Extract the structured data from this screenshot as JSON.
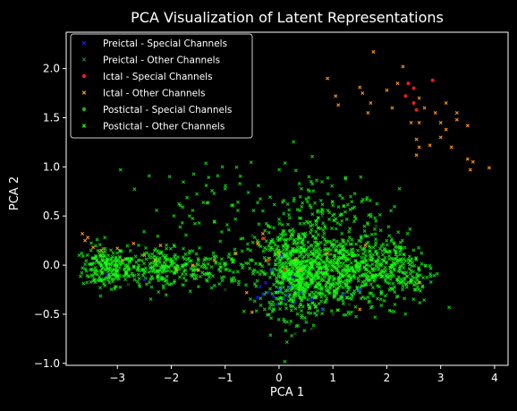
{
  "chart_data": {
    "type": "scatter",
    "title": "PCA Visualization of Latent Representations",
    "xlabel": "PCA 1",
    "ylabel": "PCA 2",
    "xlim": [
      -3.95,
      4.25
    ],
    "ylim": [
      -1.02,
      2.37
    ],
    "xticks": [
      -3,
      -2,
      -1,
      0,
      1,
      2,
      3,
      4
    ],
    "xtick_labels": [
      "−3",
      "−2",
      "−1",
      "0",
      "1",
      "2",
      "3",
      "4"
    ],
    "yticks": [
      -1.0,
      -0.5,
      0.0,
      0.5,
      1.0,
      1.5,
      2.0
    ],
    "ytick_labels": [
      "−1.0",
      "−0.5",
      "0.0",
      "0.5",
      "1.0",
      "1.5",
      "2.0"
    ],
    "grid": false,
    "legend_position": "top-left",
    "background": "#000000",
    "series": [
      {
        "name": "Preictal - Special Channels",
        "color": "#1a1aff",
        "marker": "x",
        "points": [
          [
            -0.3,
            -0.3
          ],
          [
            -0.2,
            -0.28
          ],
          [
            -0.1,
            -0.32
          ],
          [
            0.0,
            -0.25
          ],
          [
            0.1,
            -0.35
          ],
          [
            -0.4,
            -0.33
          ],
          [
            0.2,
            -0.22
          ],
          [
            0.3,
            -0.38
          ],
          [
            -0.15,
            -0.05
          ],
          [
            0.05,
            0.1
          ],
          [
            0.4,
            -0.28
          ],
          [
            -0.25,
            -0.18
          ],
          [
            0.15,
            -0.3
          ],
          [
            0.6,
            -0.35
          ],
          [
            -0.05,
            -0.4
          ],
          [
            1.2,
            -0.3
          ],
          [
            1.5,
            -0.25
          ],
          [
            -3.2,
            -0.1
          ],
          [
            -2.5,
            -0.15
          ],
          [
            0.8,
            -0.45
          ],
          [
            -0.35,
            -0.22
          ],
          [
            0.25,
            -0.12
          ]
        ]
      },
      {
        "name": "Preictal - Other Channels",
        "color": "#2a7a2a",
        "marker": "x",
        "points": [
          [
            -3.3,
            -0.05
          ],
          [
            -3.0,
            -0.15
          ],
          [
            -2.8,
            -0.2
          ],
          [
            -2.2,
            -0.1
          ],
          [
            -1.8,
            -0.2
          ],
          [
            -1.0,
            -0.25
          ],
          [
            0.2,
            -0.6
          ],
          [
            0.5,
            -0.55
          ],
          [
            1.0,
            -0.5
          ],
          [
            1.5,
            -0.45
          ],
          [
            2.0,
            -0.3
          ],
          [
            2.5,
            -0.2
          ],
          [
            0.3,
            -0.7
          ],
          [
            -0.2,
            -0.5
          ],
          [
            0.8,
            0.5
          ],
          [
            1.2,
            0.6
          ],
          [
            1.8,
            0.4
          ],
          [
            2.2,
            0.2
          ],
          [
            -0.5,
            0.3
          ],
          [
            0.6,
            -0.65
          ],
          [
            1.3,
            -0.4
          ],
          [
            -1.4,
            0.05
          ]
        ]
      },
      {
        "name": "Ictal - Special Channels",
        "color": "#ff1a1a",
        "marker": "o",
        "points": [
          [
            2.4,
            1.85
          ],
          [
            2.5,
            1.8
          ],
          [
            2.35,
            1.72
          ],
          [
            2.85,
            1.88
          ],
          [
            2.55,
            1.58
          ],
          [
            2.5,
            1.65
          ],
          [
            -0.3,
            0.27
          ],
          [
            -0.2,
            0.05
          ],
          [
            0.1,
            -0.05
          ]
        ]
      },
      {
        "name": "Ictal - Other Channels",
        "color": "#ff9a1a",
        "marker": "x",
        "points": [
          [
            1.75,
            2.17
          ],
          [
            2.3,
            2.02
          ],
          [
            2.0,
            1.78
          ],
          [
            0.9,
            1.9
          ],
          [
            1.05,
            1.72
          ],
          [
            1.1,
            1.63
          ],
          [
            1.5,
            1.81
          ],
          [
            1.55,
            1.75
          ],
          [
            1.7,
            1.65
          ],
          [
            2.1,
            1.6
          ],
          [
            2.2,
            1.85
          ],
          [
            2.45,
            1.45
          ],
          [
            2.6,
            1.45
          ],
          [
            2.6,
            1.7
          ],
          [
            2.7,
            1.6
          ],
          [
            2.9,
            1.55
          ],
          [
            3.0,
            1.45
          ],
          [
            3.1,
            1.65
          ],
          [
            3.3,
            1.48
          ],
          [
            3.5,
            1.42
          ],
          [
            2.55,
            1.28
          ],
          [
            2.6,
            1.2
          ],
          [
            2.8,
            1.22
          ],
          [
            3.0,
            1.3
          ],
          [
            3.2,
            1.2
          ],
          [
            3.1,
            1.38
          ],
          [
            3.5,
            1.08
          ],
          [
            3.55,
            0.97
          ],
          [
            3.6,
            1.05
          ],
          [
            3.9,
            0.99
          ],
          [
            2.55,
            1.12
          ],
          [
            1.65,
            1.55
          ],
          [
            3.3,
            1.55
          ],
          [
            -3.55,
            0.28
          ],
          [
            -3.6,
            0.25
          ],
          [
            -3.45,
            0.18
          ],
          [
            -3.3,
            0.15
          ],
          [
            -3.0,
            0.17
          ],
          [
            -2.7,
            0.22
          ],
          [
            -2.5,
            0.1
          ],
          [
            -2.3,
            0.05
          ],
          [
            -1.6,
            0.0
          ],
          [
            -1.2,
            0.05
          ],
          [
            -0.8,
            0.12
          ],
          [
            -0.4,
            0.22
          ],
          [
            0.0,
            0.12
          ],
          [
            0.4,
            -0.05
          ],
          [
            -1.9,
            -0.05
          ],
          [
            -2.2,
            0.2
          ],
          [
            -0.6,
            -0.28
          ],
          [
            -0.5,
            -0.48
          ],
          [
            1.5,
            -0.45
          ],
          [
            2.6,
            -0.18
          ],
          [
            0.3,
            0.05
          ],
          [
            -0.3,
            0.32
          ],
          [
            -1.5,
            -0.05
          ],
          [
            0.9,
            0.12
          ],
          [
            1.6,
            0.2
          ],
          [
            -2.9,
            0.05
          ],
          [
            -3.65,
            0.32
          ]
        ]
      },
      {
        "name": "Postictal - Special Channels",
        "color": "#22b022",
        "marker": "o",
        "points": [
          [
            -3.3,
            0.0
          ],
          [
            -3.0,
            -0.1
          ],
          [
            -2.6,
            0.05
          ],
          [
            -2.0,
            0.0
          ],
          [
            -1.5,
            -0.05
          ],
          [
            -1.0,
            0.0
          ],
          [
            -0.5,
            0.05
          ],
          [
            0.0,
            0.1
          ],
          [
            0.3,
            -0.1
          ],
          [
            0.6,
            0.2
          ],
          [
            0.9,
            -0.05
          ],
          [
            1.2,
            0.1
          ],
          [
            1.5,
            0.0
          ],
          [
            1.8,
            -0.1
          ],
          [
            2.2,
            0.05
          ],
          [
            2.6,
            -0.05
          ],
          [
            0.2,
            0.35
          ],
          [
            0.7,
            0.45
          ],
          [
            1.1,
            -0.35
          ],
          [
            -0.2,
            0.4
          ],
          [
            0.4,
            -0.4
          ],
          [
            1.6,
            0.3
          ]
        ]
      },
      {
        "name": "Postictal - Other Channels",
        "color": "#1aff1a",
        "marker": "x",
        "clusters": [
          {
            "center": [
              -3.25,
              -0.02
            ],
            "spread": [
              0.25,
              0.14
            ],
            "count": 160
          },
          {
            "center": [
              -2.8,
              -0.02
            ],
            "spread": [
              0.3,
              0.12
            ],
            "count": 90
          },
          {
            "center": [
              -2.15,
              -0.02
            ],
            "spread": [
              0.28,
              0.12
            ],
            "count": 130
          },
          {
            "center": [
              -1.55,
              -0.06
            ],
            "spread": [
              0.3,
              0.12
            ],
            "count": 70
          },
          {
            "center": [
              -0.85,
              0.0
            ],
            "spread": [
              0.3,
              0.14
            ],
            "count": 50
          },
          {
            "center": [
              0.3,
              -0.08
            ],
            "spread": [
              0.42,
              0.28
            ],
            "count": 620
          },
          {
            "center": [
              1.25,
              -0.05
            ],
            "spread": [
              0.6,
              0.24
            ],
            "count": 520
          },
          {
            "center": [
              2.25,
              -0.05
            ],
            "spread": [
              0.4,
              0.22
            ],
            "count": 180
          },
          {
            "center": [
              0.9,
              0.55
            ],
            "spread": [
              0.7,
              0.28
            ],
            "count": 130
          },
          {
            "center": [
              -1.0,
              0.6
            ],
            "spread": [
              1.0,
              0.3
            ],
            "count": 80
          }
        ]
      }
    ]
  }
}
